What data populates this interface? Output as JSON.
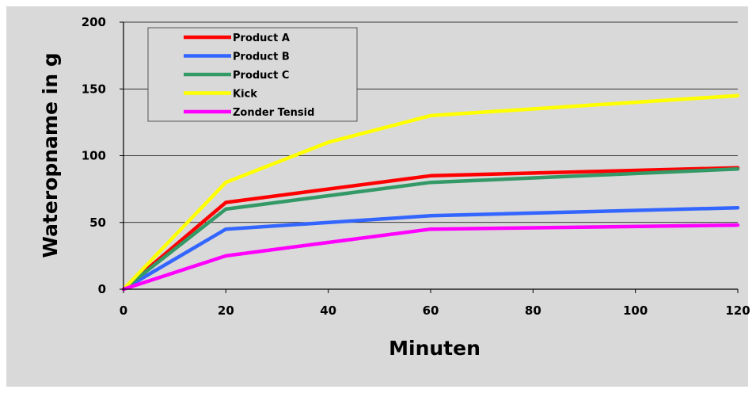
{
  "chart_data": {
    "type": "line",
    "xlabel": "Minuten",
    "ylabel": "Wateropname in g",
    "xlim": [
      0,
      120
    ],
    "ylim": [
      0,
      200
    ],
    "xticks": [
      0,
      20,
      40,
      60,
      80,
      100,
      120
    ],
    "yticks": [
      0,
      50,
      100,
      150,
      200
    ],
    "grid": "horizontal",
    "legend_position": "top-left",
    "series": [
      {
        "name": "Product A",
        "color": "#ff0000",
        "x": [
          0,
          20,
          60,
          120
        ],
        "y": [
          0,
          65,
          85,
          91
        ]
      },
      {
        "name": "Product B",
        "color": "#3366ff",
        "x": [
          0,
          20,
          60,
          120
        ],
        "y": [
          0,
          45,
          55,
          61
        ]
      },
      {
        "name": "Product C",
        "color": "#339966",
        "x": [
          0,
          20,
          60,
          120
        ],
        "y": [
          0,
          60,
          80,
          90
        ]
      },
      {
        "name": "Kick",
        "color": "#ffff00",
        "x": [
          0,
          20,
          40,
          60,
          120
        ],
        "y": [
          0,
          80,
          110,
          130,
          145
        ]
      },
      {
        "name": "Zonder Tensid",
        "color": "#ff00ff",
        "x": [
          0,
          20,
          40,
          60,
          120
        ],
        "y": [
          0,
          25,
          35,
          45,
          48
        ]
      }
    ]
  },
  "colors": {
    "chart_background": "#d9d9d9",
    "gridline": "#000000"
  }
}
